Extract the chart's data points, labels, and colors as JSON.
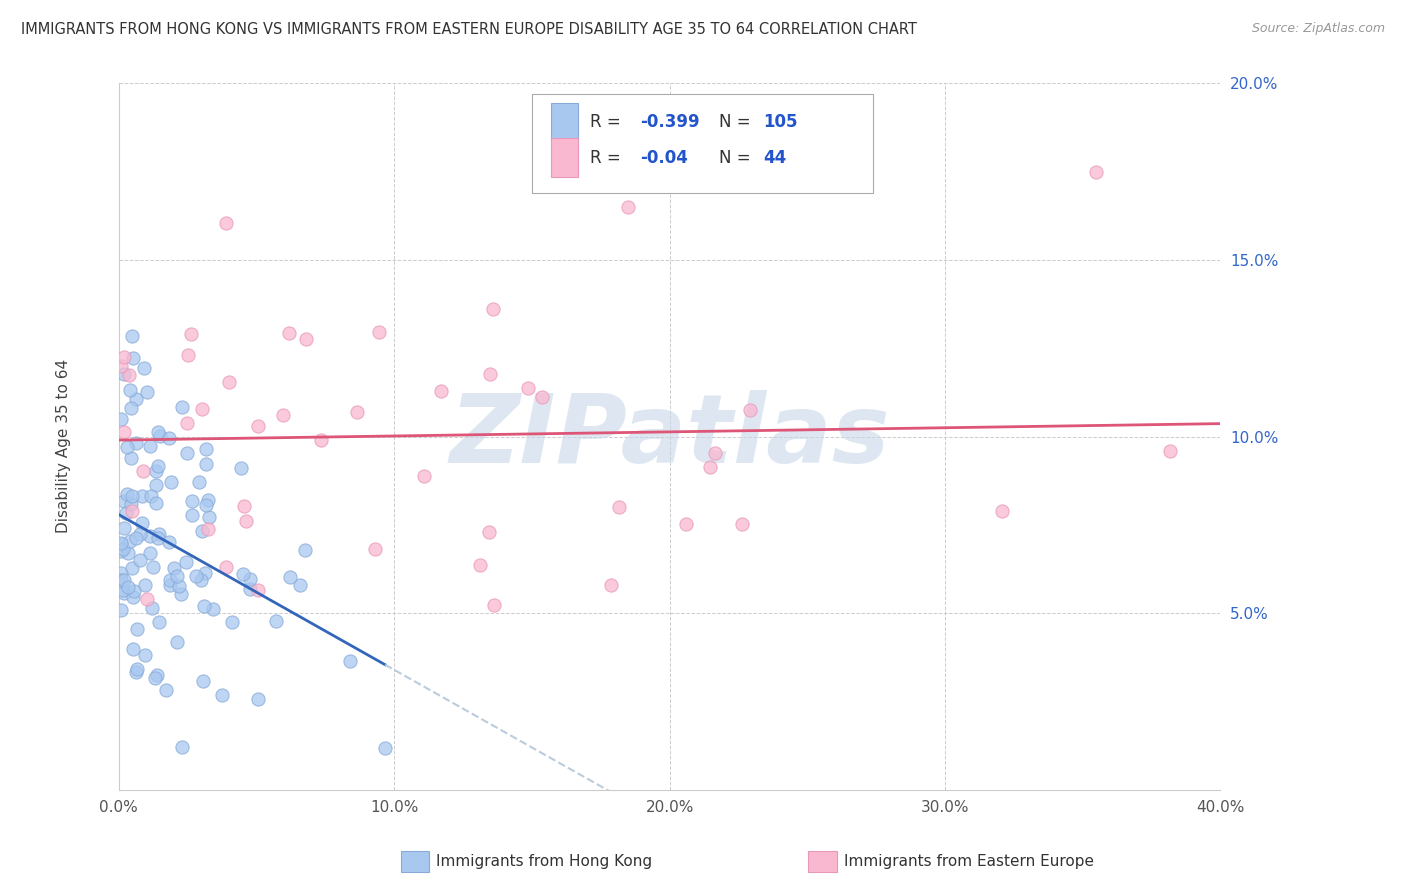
{
  "title": "IMMIGRANTS FROM HONG KONG VS IMMIGRANTS FROM EASTERN EUROPE DISABILITY AGE 35 TO 64 CORRELATION CHART",
  "source": "Source: ZipAtlas.com",
  "xlabel_hk": "Immigrants from Hong Kong",
  "xlabel_ee": "Immigrants from Eastern Europe",
  "ylabel": "Disability Age 35 to 64",
  "xlim": [
    0.0,
    0.4
  ],
  "ylim": [
    0.0,
    0.2
  ],
  "xticks": [
    0.0,
    0.1,
    0.2,
    0.3,
    0.4
  ],
  "yticks": [
    0.0,
    0.05,
    0.1,
    0.15,
    0.2
  ],
  "R_hk": -0.399,
  "N_hk": 105,
  "R_ee": -0.04,
  "N_ee": 44,
  "color_hk": "#a8c8f0",
  "color_hk_edge": "#88aad8",
  "color_ee": "#f9b8d0",
  "color_ee_edge": "#e898b8",
  "line_color_hk": "#3366bb",
  "line_color_ee": "#dd5577",
  "line_color_dashed": "#bbccdd",
  "watermark": "ZIPatlas",
  "watermark_color": "#c8d8e8",
  "background_color": "#ffffff",
  "legend_R_color": "#2255cc",
  "legend_N_color": "#2255cc",
  "legend_label_color": "#333333",
  "ytick_color": "#3366cc",
  "xtick_color": "#555555"
}
